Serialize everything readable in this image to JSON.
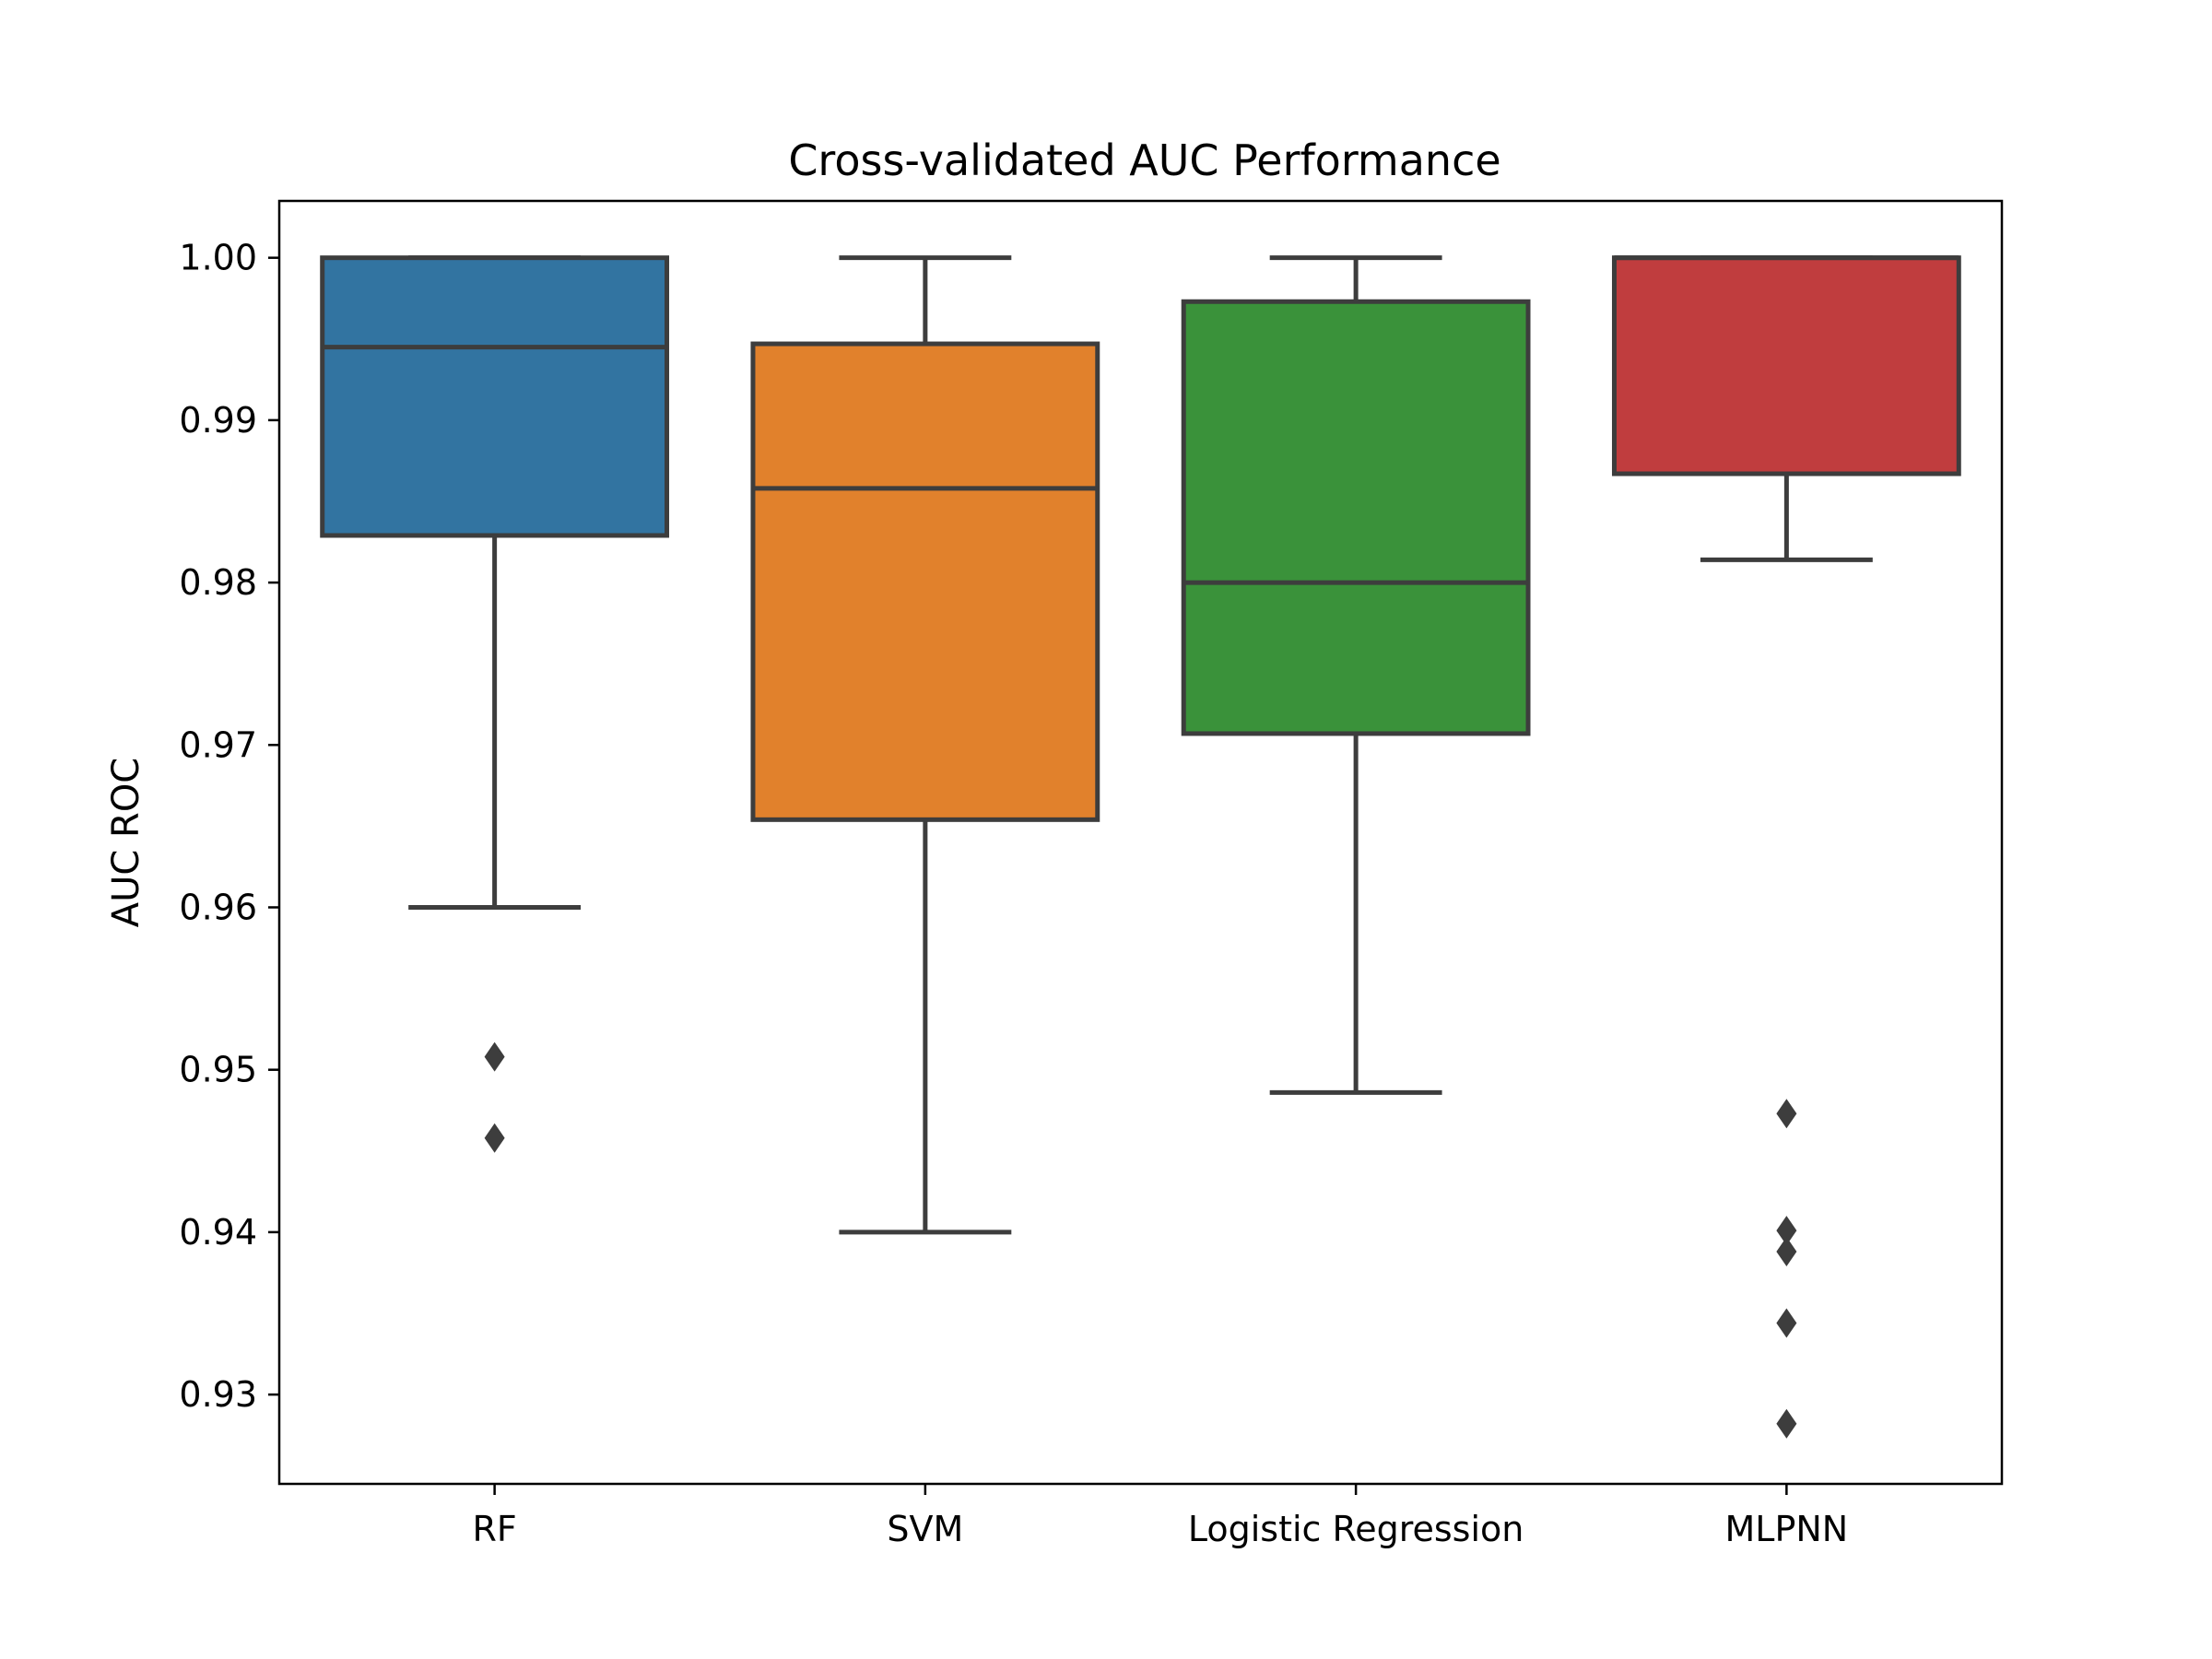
{
  "chart_data": {
    "type": "box",
    "title": "Cross-validated AUC Performance",
    "xlabel": "",
    "ylabel": "AUC ROC",
    "ylim": [
      0.9245,
      1.0035
    ],
    "yticks": [
      0.93,
      0.94,
      0.95,
      0.96,
      0.97,
      0.98,
      0.99,
      1.0
    ],
    "ytick_labels": [
      "0.93",
      "0.94",
      "0.95",
      "0.96",
      "0.97",
      "0.98",
      "0.99",
      "1.00"
    ],
    "grid": false,
    "legend": "none",
    "categories": [
      "RF",
      "SVM",
      "Logistic Regression",
      "MLPNN"
    ],
    "boxes": [
      {
        "category": "RF",
        "color": "#3274a1",
        "whisker_low": 0.96,
        "q1": 0.9829,
        "median": 0.9945,
        "q3": 1.0,
        "whisker_high": 1.0,
        "outliers": [
          0.9508,
          0.9458
        ]
      },
      {
        "category": "SVM",
        "color": "#e1812c",
        "whisker_low": 0.94,
        "q1": 0.9654,
        "median": 0.9858,
        "q3": 0.9947,
        "whisker_high": 1.0,
        "outliers": []
      },
      {
        "category": "Logistic Regression",
        "color": "#3a923a",
        "whisker_low": 0.9486,
        "q1": 0.9707,
        "median": 0.98,
        "q3": 0.9973,
        "whisker_high": 1.0,
        "outliers": []
      },
      {
        "category": "MLPNN",
        "color": "#c03d3e",
        "whisker_low": 0.9814,
        "q1": 0.9867,
        "median": 1.0,
        "q3": 1.0,
        "whisker_high": 1.0,
        "outliers": [
          0.9473,
          0.9401,
          0.9388,
          0.9344,
          0.9282
        ]
      }
    ],
    "line_color": "#3d3d3d"
  }
}
